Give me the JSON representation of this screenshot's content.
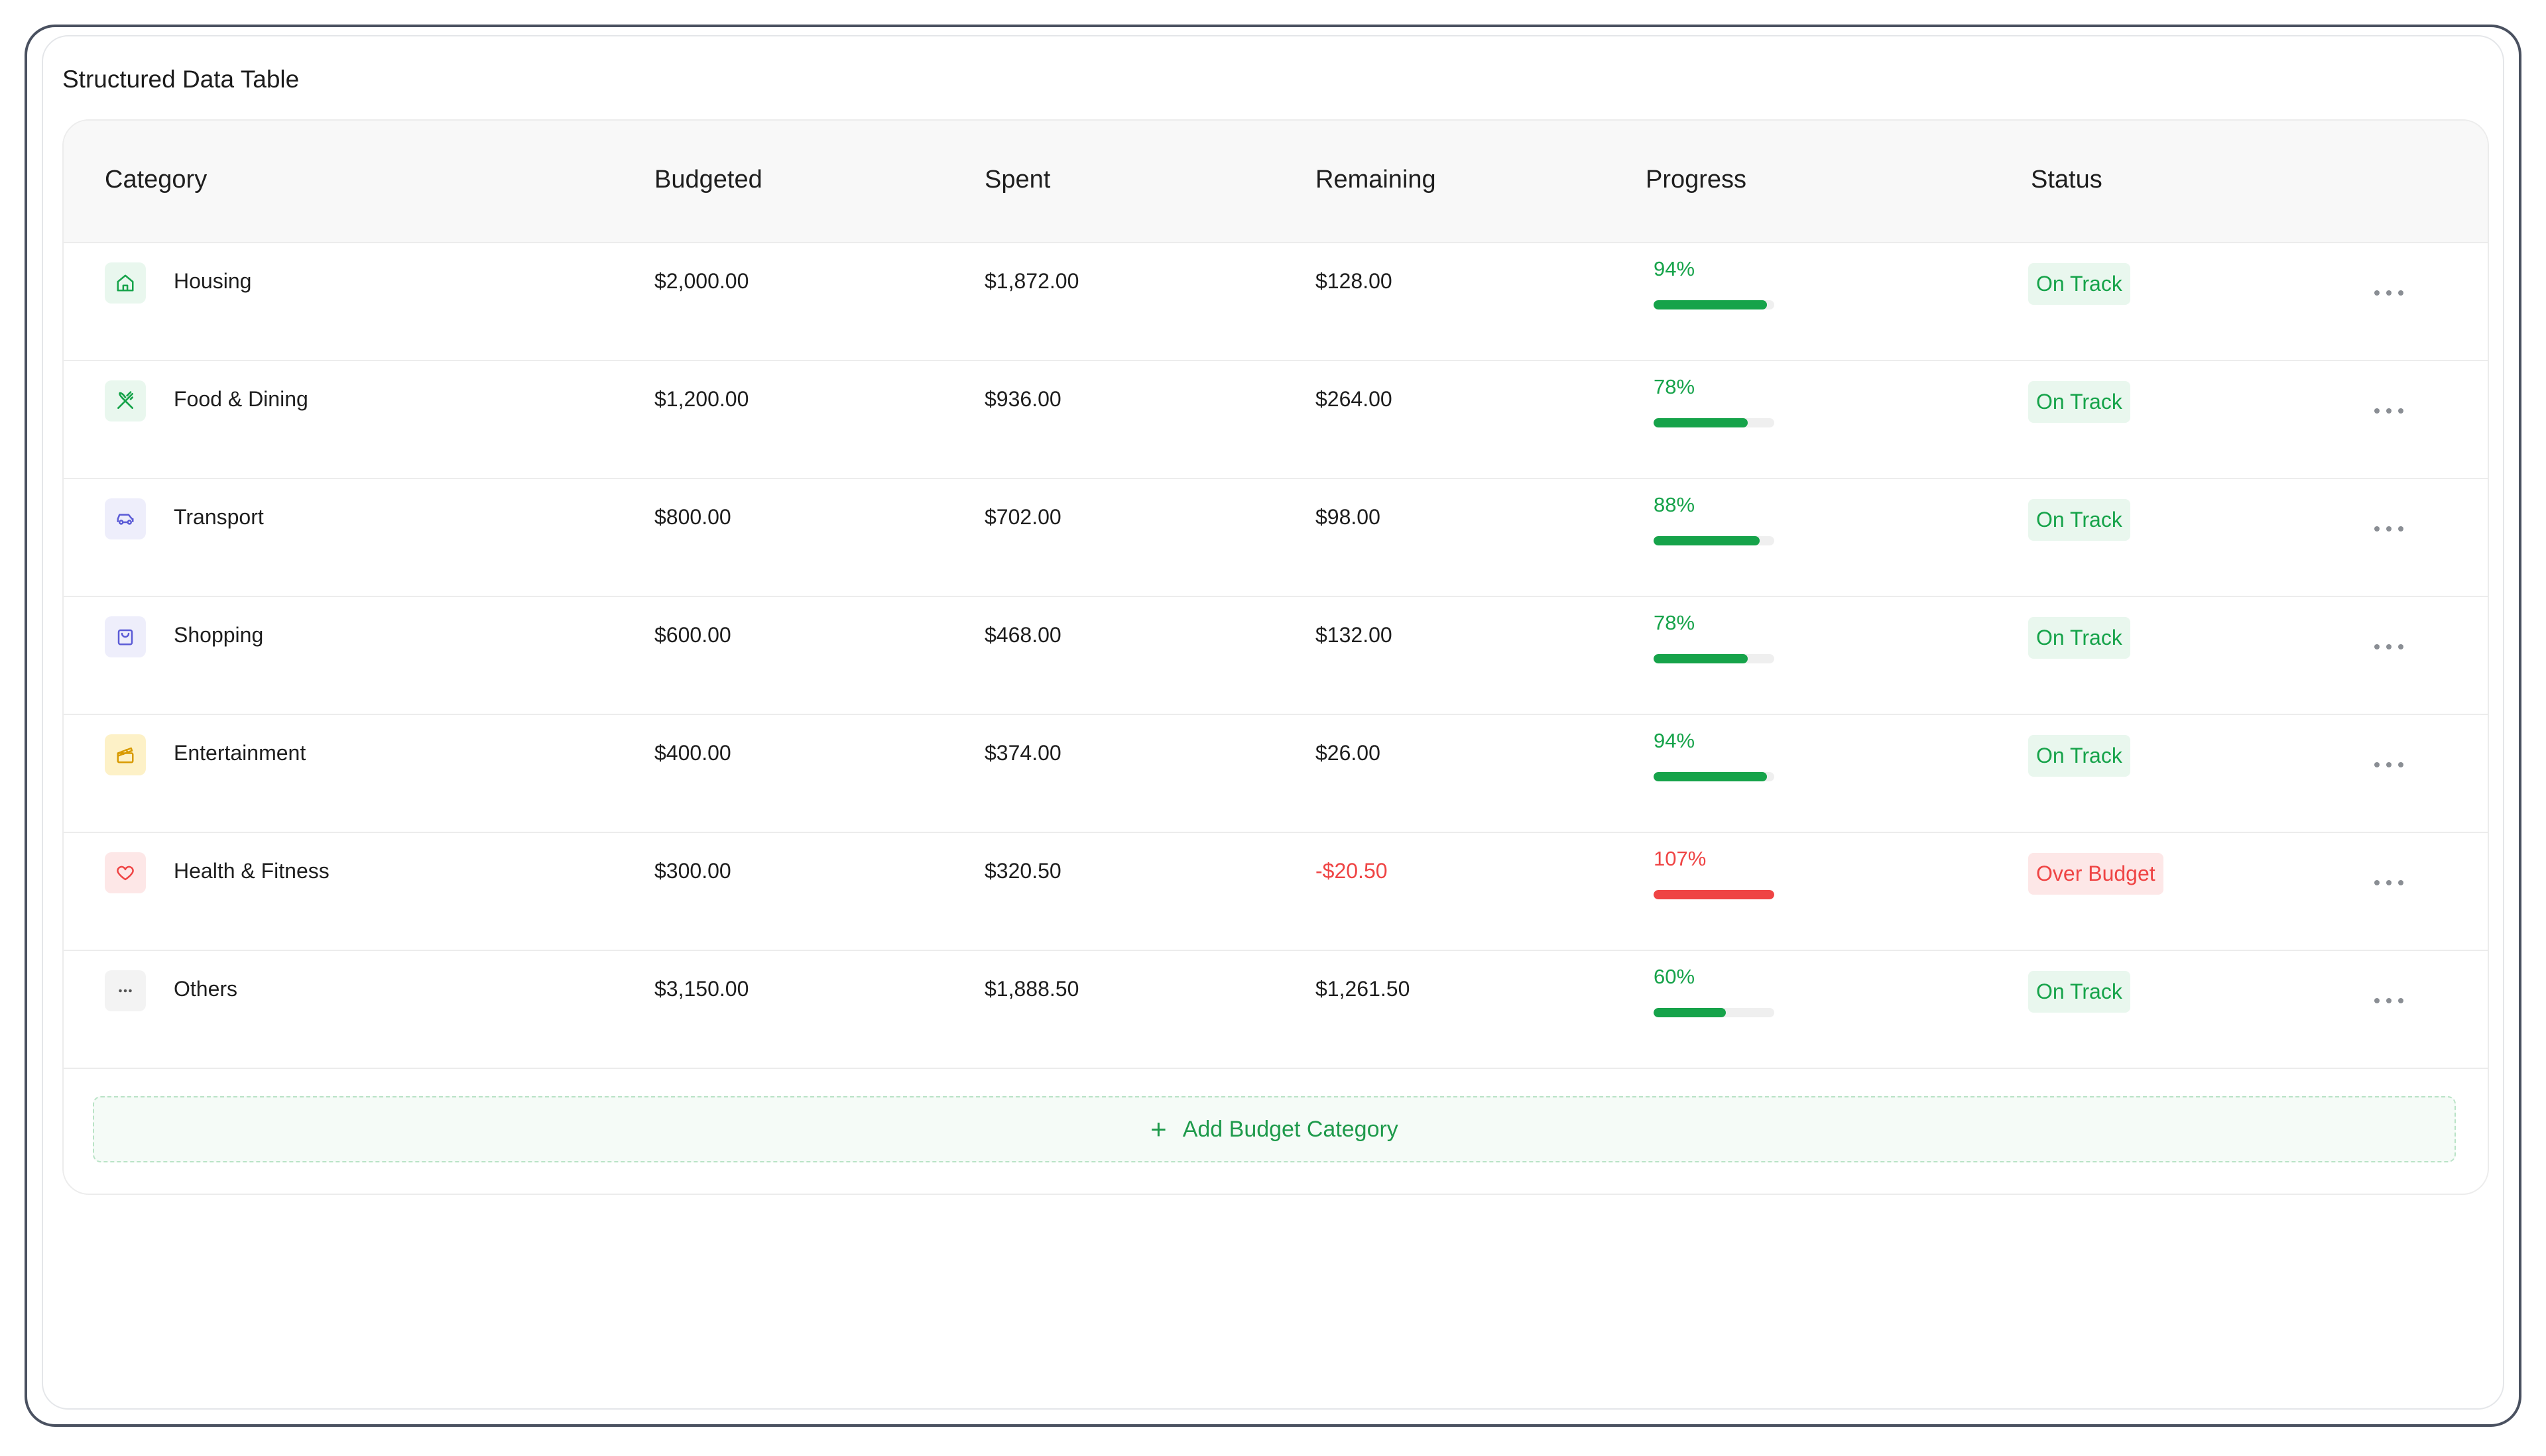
{
  "page_title": "Structured Data Table",
  "columns": {
    "category": "Category",
    "budgeted": "Budgeted",
    "spent": "Spent",
    "remaining": "Remaining",
    "progress": "Progress",
    "status": "Status"
  },
  "rows": [
    {
      "category": "Housing",
      "icon": "home-icon",
      "budgeted": "$2,000.00",
      "spent": "$1,872.00",
      "remaining": "$128.00",
      "progress_label": "94%",
      "progress": 0.94,
      "status": "On Track",
      "over": false
    },
    {
      "category": "Food & Dining",
      "icon": "fork-knife-icon",
      "budgeted": "$1,200.00",
      "spent": "$936.00",
      "remaining": "$264.00",
      "progress_label": "78%",
      "progress": 0.78,
      "status": "On Track",
      "over": false
    },
    {
      "category": "Transport",
      "icon": "car-icon",
      "budgeted": "$800.00",
      "spent": "$702.00",
      "remaining": "$98.00",
      "progress_label": "88%",
      "progress": 0.88,
      "status": "On Track",
      "over": false
    },
    {
      "category": "Shopping",
      "icon": "shopping-bag-icon",
      "budgeted": "$600.00",
      "spent": "$468.00",
      "remaining": "$132.00",
      "progress_label": "78%",
      "progress": 0.78,
      "status": "On Track",
      "over": false
    },
    {
      "category": "Entertainment",
      "icon": "clapperboard-icon",
      "budgeted": "$400.00",
      "spent": "$374.00",
      "remaining": "$26.00",
      "progress_label": "94%",
      "progress": 0.94,
      "status": "On Track",
      "over": false
    },
    {
      "category": "Health & Fitness",
      "icon": "heart-icon",
      "budgeted": "$300.00",
      "spent": "$320.50",
      "remaining": "-$20.50",
      "progress_label": "107%",
      "progress": 1.07,
      "status": "Over Budget",
      "over": true
    },
    {
      "category": "Others",
      "icon": "ellipsis-icon",
      "budgeted": "$3,150.00",
      "spent": "$1,888.50",
      "remaining": "$1,261.50",
      "progress_label": "60%",
      "progress": 0.6,
      "status": "On Track",
      "over": false
    }
  ],
  "add_button": {
    "label": "Add Budget Category"
  },
  "colors": {
    "green": "#16a34a",
    "red": "#ef4444",
    "badge_green_bg": "#e9f7ee",
    "badge_red_bg": "#fde7e7",
    "track": "#efefef"
  }
}
